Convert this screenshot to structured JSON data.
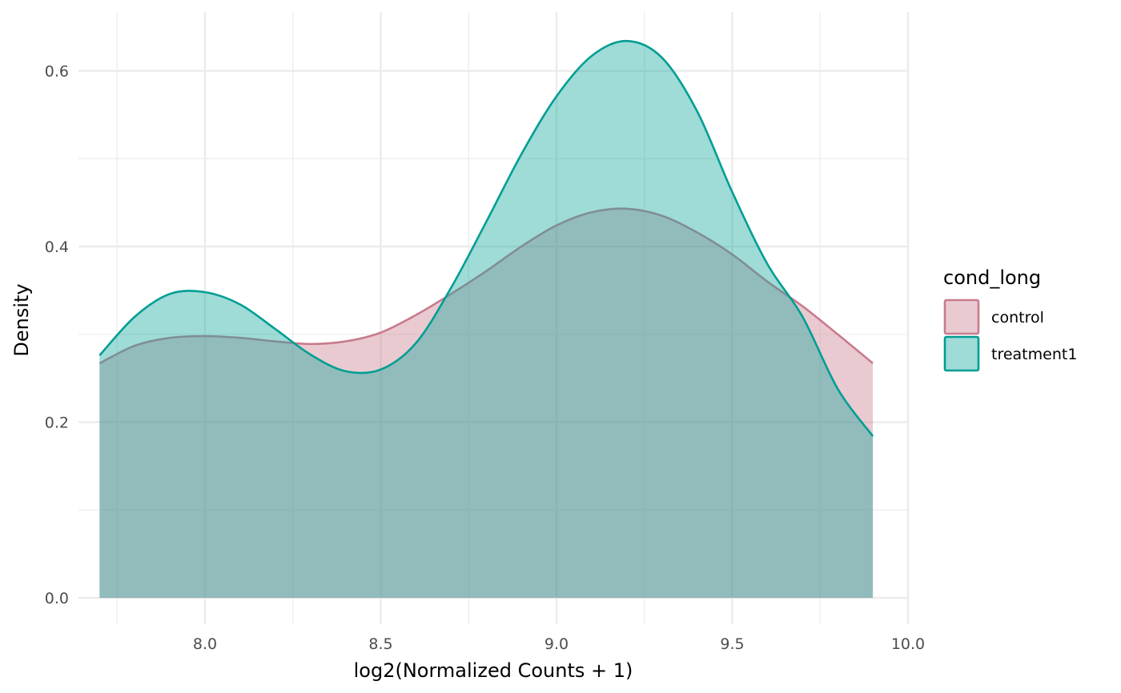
{
  "chart_data": {
    "type": "area",
    "subtype": "density",
    "xlabel": "log2(Normalized Counts + 1)",
    "ylabel": "Density",
    "xlim": [
      7.64,
      10.0
    ],
    "ylim": [
      -0.03,
      0.667
    ],
    "x_ticks": [
      8.0,
      8.5,
      9.0,
      9.5,
      10.0
    ],
    "x_tick_labels": [
      "8.0",
      "8.5",
      "9.0",
      "9.5",
      "10.0"
    ],
    "y_ticks": [
      0.0,
      0.2,
      0.4,
      0.6
    ],
    "y_tick_labels": [
      "0.0",
      "0.2",
      "0.4",
      "0.6"
    ],
    "grid": true,
    "legend": {
      "title": "cond_long",
      "position": "right"
    },
    "series": [
      {
        "name": "control",
        "fill": "#c97b8d",
        "stroke": "#c97b8d",
        "fill_opacity": 0.4,
        "x": [
          7.7,
          7.8,
          7.9,
          8.0,
          8.1,
          8.2,
          8.3,
          8.4,
          8.5,
          8.6,
          8.7,
          8.8,
          8.9,
          9.0,
          9.1,
          9.2,
          9.3,
          9.4,
          9.5,
          9.6,
          9.7,
          9.8,
          9.9
        ],
        "values": [
          0.267,
          0.287,
          0.296,
          0.298,
          0.296,
          0.292,
          0.289,
          0.292,
          0.302,
          0.322,
          0.346,
          0.372,
          0.4,
          0.424,
          0.439,
          0.443,
          0.435,
          0.416,
          0.391,
          0.36,
          0.332,
          0.3,
          0.267
        ]
      },
      {
        "name": "treatment1",
        "fill": "#1aa9a0",
        "stroke": "#009e93",
        "fill_opacity": 0.42,
        "x": [
          7.7,
          7.8,
          7.9,
          8.0,
          8.1,
          8.2,
          8.3,
          8.4,
          8.5,
          8.6,
          8.7,
          8.8,
          8.9,
          9.0,
          9.1,
          9.2,
          9.3,
          9.4,
          9.5,
          9.6,
          9.7,
          9.8,
          9.9
        ],
        "values": [
          0.276,
          0.32,
          0.346,
          0.348,
          0.334,
          0.306,
          0.277,
          0.258,
          0.26,
          0.29,
          0.353,
          0.428,
          0.505,
          0.571,
          0.617,
          0.634,
          0.615,
          0.554,
          0.462,
          0.38,
          0.32,
          0.238,
          0.184
        ]
      }
    ]
  }
}
